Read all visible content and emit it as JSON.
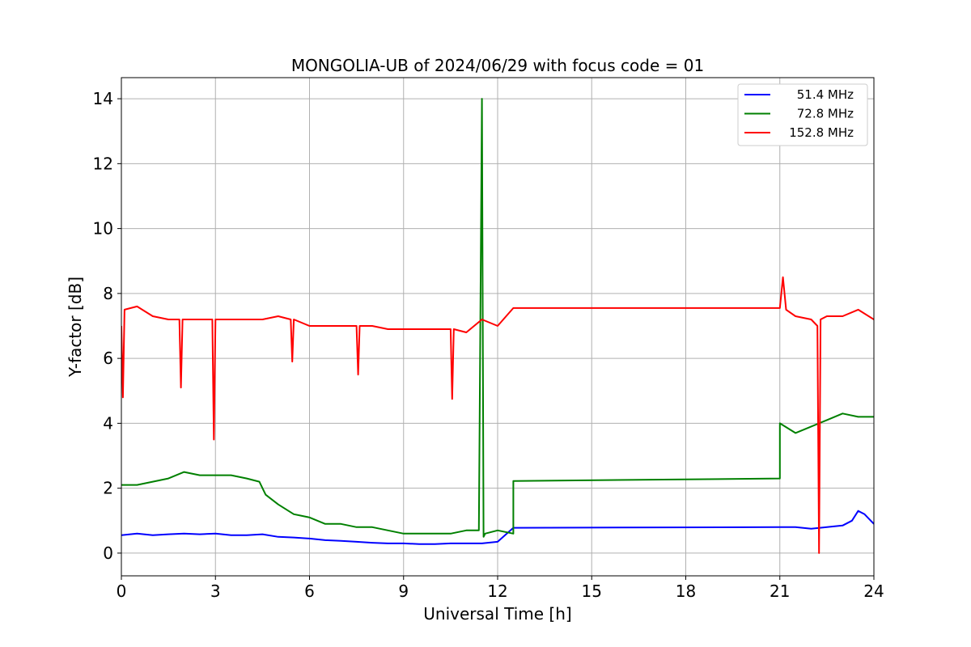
{
  "chart_data": {
    "type": "line",
    "title": "MONGOLIA-UB of 2024/06/29 with focus code = 01",
    "xlabel": "Universal Time [h]",
    "ylabel": "Y-factor [dB]",
    "xlim": [
      0,
      24
    ],
    "ylim": [
      -0.7,
      14.65
    ],
    "xticks": [
      0,
      3,
      6,
      9,
      12,
      15,
      18,
      21,
      24
    ],
    "xtick_labels": [
      "0",
      "3",
      "6",
      "9",
      "12",
      "15",
      "18",
      "21",
      "24"
    ],
    "yticks": [
      0,
      2,
      4,
      6,
      8,
      10,
      12,
      14
    ],
    "ytick_labels": [
      "0",
      "2",
      "4",
      "6",
      "8",
      "10",
      "12",
      "14"
    ],
    "grid": true,
    "legend_position": "top-right",
    "series": [
      {
        "name": "51.4 MHz",
        "color": "#0000ff",
        "x": [
          0,
          0.5,
          1,
          1.5,
          2,
          2.5,
          3,
          3.5,
          4,
          4.5,
          5,
          5.5,
          6,
          6.5,
          7,
          7.5,
          8,
          8.5,
          9,
          9.5,
          10,
          10.5,
          11,
          11.5,
          12,
          12.5,
          21.0,
          21.5,
          22,
          22.5,
          23,
          23.3,
          23.5,
          23.7,
          24
        ],
        "y": [
          0.55,
          0.6,
          0.55,
          0.58,
          0.6,
          0.58,
          0.6,
          0.55,
          0.55,
          0.58,
          0.5,
          0.48,
          0.45,
          0.4,
          0.38,
          0.35,
          0.32,
          0.3,
          0.3,
          0.28,
          0.28,
          0.3,
          0.3,
          0.3,
          0.35,
          0.78,
          0.8,
          0.8,
          0.75,
          0.8,
          0.85,
          1.0,
          1.3,
          1.2,
          0.9
        ]
      },
      {
        "name": "72.8 MHz",
        "color": "#008000",
        "x": [
          0,
          0.5,
          1,
          1.5,
          2,
          2.5,
          3,
          3.5,
          4,
          4.4,
          4.6,
          5,
          5.5,
          6,
          6.5,
          7,
          7.5,
          8,
          8.5,
          9,
          9.5,
          10,
          10.5,
          11,
          11.4,
          11.5,
          11.55,
          11.6,
          12,
          12.5,
          12.5,
          21.0,
          21.0,
          21.5,
          22,
          22.5,
          23,
          23.5,
          24
        ],
        "y": [
          2.1,
          2.1,
          2.2,
          2.3,
          2.5,
          2.4,
          2.4,
          2.4,
          2.3,
          2.2,
          1.8,
          1.5,
          1.2,
          1.1,
          0.9,
          0.9,
          0.8,
          0.8,
          0.7,
          0.6,
          0.6,
          0.6,
          0.6,
          0.7,
          0.7,
          14.0,
          0.5,
          0.6,
          0.7,
          0.6,
          2.22,
          2.3,
          4.0,
          3.7,
          3.9,
          4.1,
          4.3,
          4.2,
          4.2
        ]
      },
      {
        "name": "152.8 MHz",
        "color": "#ff0000",
        "x": [
          0,
          0.05,
          0.1,
          0.5,
          1,
          1.5,
          1.85,
          1.9,
          1.95,
          2.5,
          2.9,
          2.95,
          3.0,
          3.5,
          4,
          4.5,
          5,
          5.4,
          5.45,
          5.5,
          6,
          6.5,
          7,
          7.5,
          7.55,
          7.6,
          8,
          8.5,
          9,
          9.5,
          10,
          10.5,
          10.55,
          10.6,
          11,
          11.5,
          12,
          12.5,
          21.0,
          21.1,
          21.2,
          21.5,
          22,
          22.2,
          22.25,
          22.3,
          22.5,
          23,
          23.5,
          24
        ],
        "y": [
          7.0,
          4.8,
          7.5,
          7.6,
          7.3,
          7.2,
          7.2,
          5.1,
          7.2,
          7.2,
          7.2,
          3.5,
          7.2,
          7.2,
          7.2,
          7.2,
          7.3,
          7.2,
          5.9,
          7.2,
          7.0,
          7.0,
          7.0,
          7.0,
          5.5,
          7.0,
          7.0,
          6.9,
          6.9,
          6.9,
          6.9,
          6.9,
          4.75,
          6.9,
          6.8,
          7.2,
          7.0,
          7.55,
          7.55,
          8.5,
          7.5,
          7.3,
          7.2,
          7.0,
          0.0,
          7.2,
          7.3,
          7.3,
          7.5,
          7.2
        ]
      }
    ]
  }
}
